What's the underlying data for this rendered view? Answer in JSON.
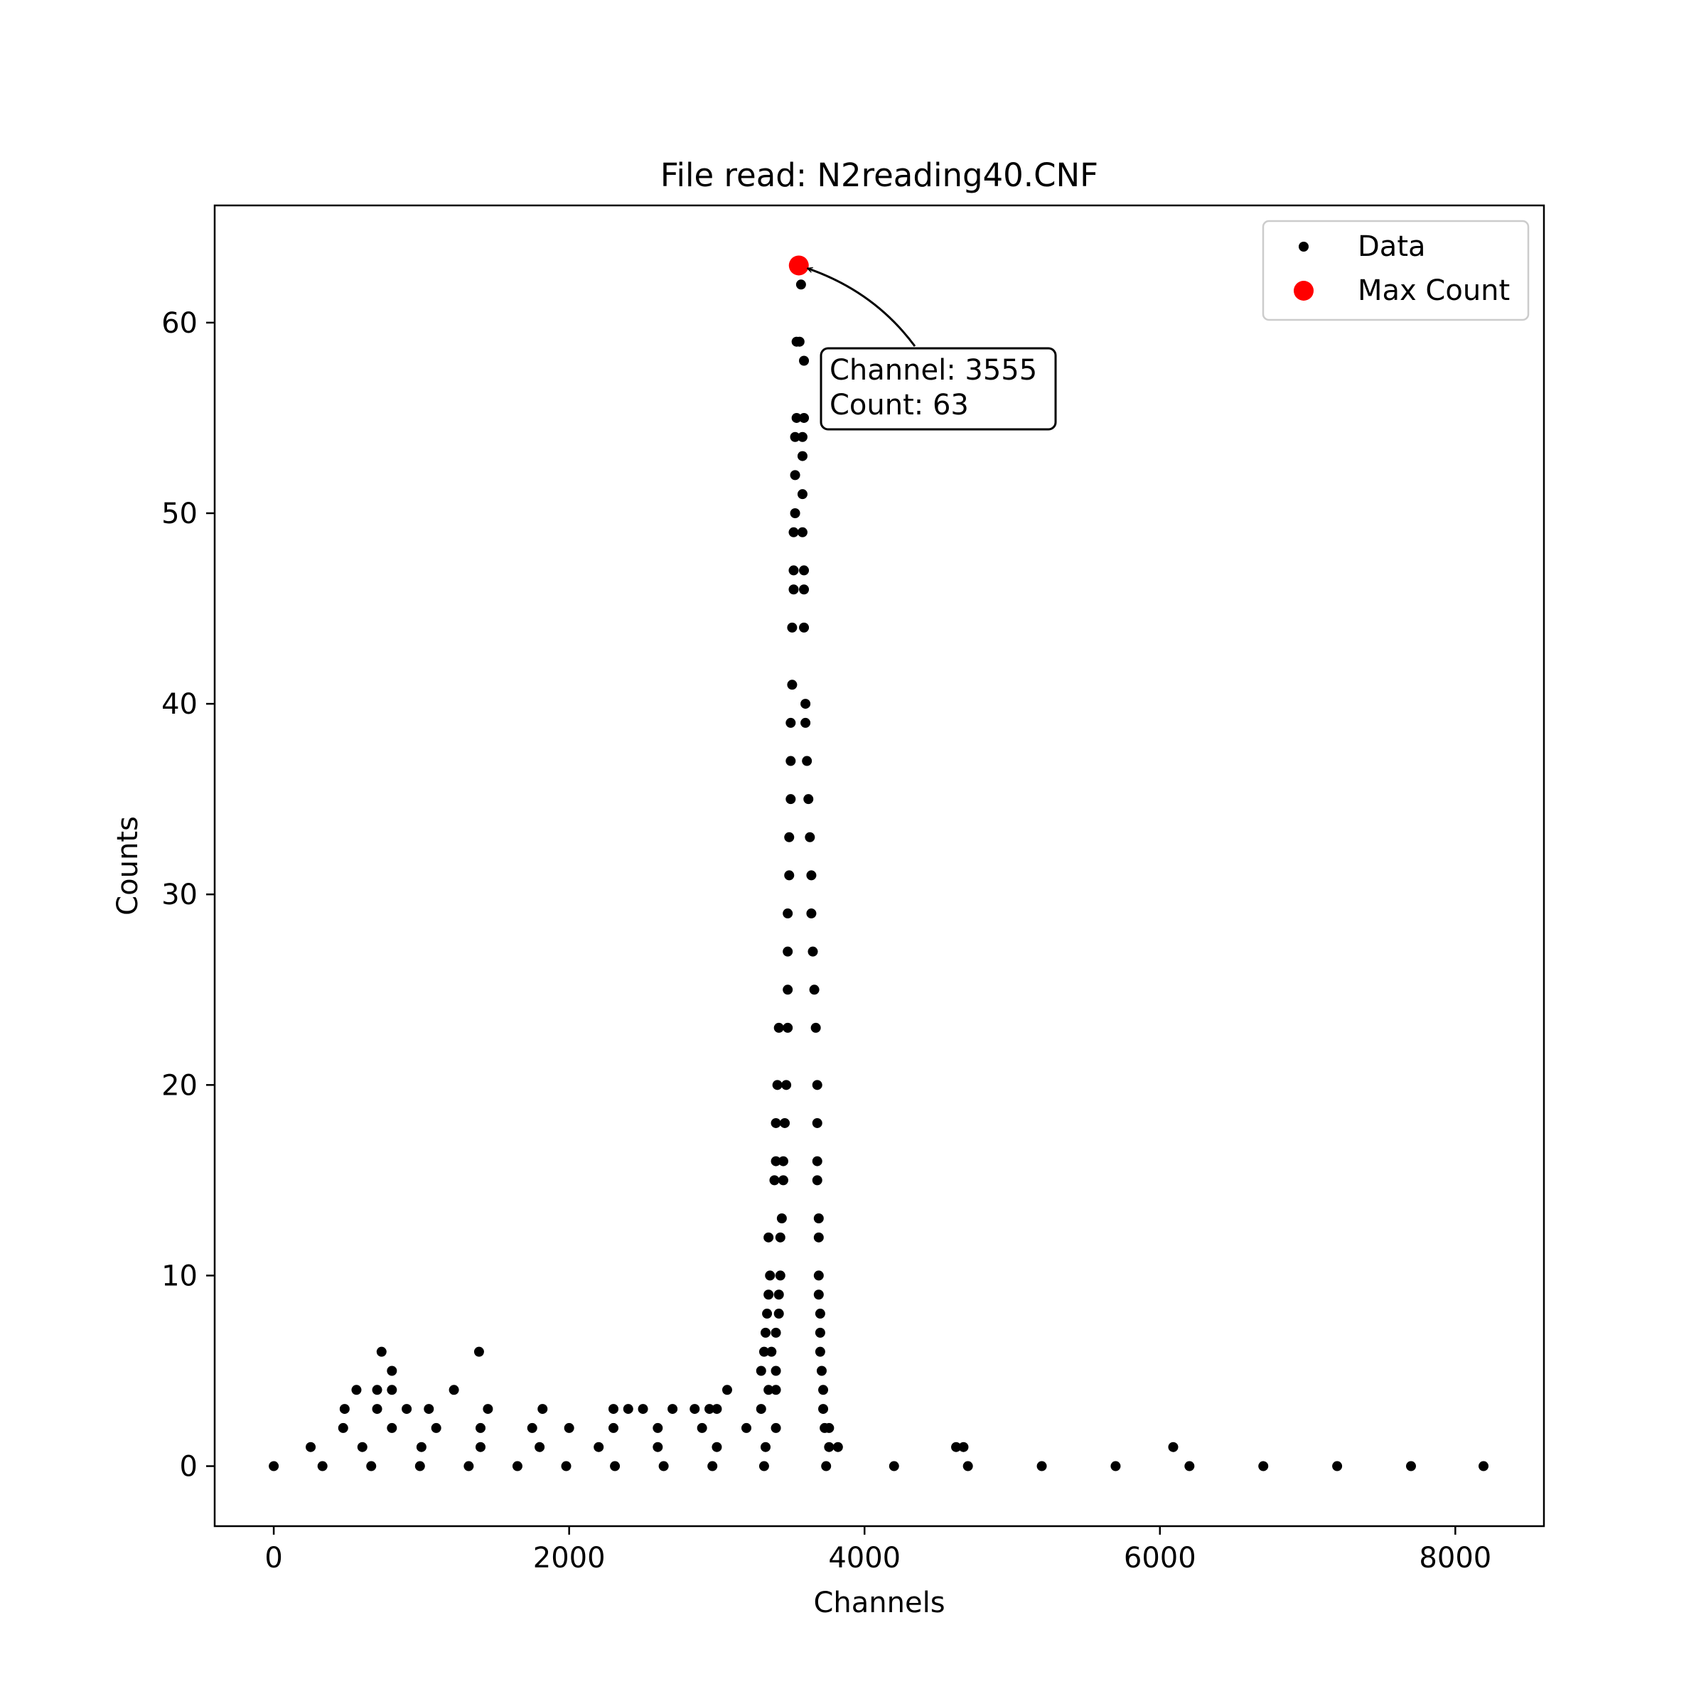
{
  "chart_data": {
    "type": "scatter",
    "title": "File read: N2reading40.CNF",
    "xlabel": "Channels",
    "ylabel": "Counts",
    "xlim": [
      -400,
      8600
    ],
    "ylim": [
      -3.15,
      66.15
    ],
    "xticks": [
      0,
      2000,
      4000,
      6000,
      8000
    ],
    "yticks": [
      0,
      10,
      20,
      30,
      40,
      50,
      60
    ],
    "grid": false,
    "legend_position": "top-right",
    "series": [
      {
        "name": "Data",
        "color": "#000000",
        "marker": "small-dot",
        "x_range": [
          0,
          8191
        ],
        "points": [
          [
            0,
            0
          ],
          [
            330,
            0
          ],
          [
            660,
            0
          ],
          [
            990,
            0
          ],
          [
            1320,
            0
          ],
          [
            1650,
            0
          ],
          [
            1980,
            0
          ],
          [
            2310,
            0
          ],
          [
            2640,
            0
          ],
          [
            2970,
            0
          ],
          [
            3320,
            0
          ],
          [
            3740,
            0
          ],
          [
            4200,
            0
          ],
          [
            4700,
            0
          ],
          [
            5200,
            0
          ],
          [
            5700,
            0
          ],
          [
            6200,
            0
          ],
          [
            6700,
            0
          ],
          [
            7200,
            0
          ],
          [
            7700,
            0
          ],
          [
            8191,
            0
          ],
          [
            250,
            1
          ],
          [
            600,
            1
          ],
          [
            1000,
            1
          ],
          [
            1400,
            1
          ],
          [
            1800,
            1
          ],
          [
            2200,
            1
          ],
          [
            2600,
            1
          ],
          [
            3000,
            1
          ],
          [
            3330,
            1
          ],
          [
            3760,
            1
          ],
          [
            3820,
            1
          ],
          [
            4620,
            1
          ],
          [
            4670,
            1
          ],
          [
            6090,
            1
          ],
          [
            470,
            2
          ],
          [
            800,
            2
          ],
          [
            1100,
            2
          ],
          [
            1400,
            2
          ],
          [
            1750,
            2
          ],
          [
            2000,
            2
          ],
          [
            2300,
            2
          ],
          [
            2600,
            2
          ],
          [
            2900,
            2
          ],
          [
            3200,
            2
          ],
          [
            3400,
            2
          ],
          [
            3730,
            2
          ],
          [
            3760,
            2
          ],
          [
            480,
            3
          ],
          [
            700,
            3
          ],
          [
            900,
            3
          ],
          [
            1050,
            3
          ],
          [
            1450,
            3
          ],
          [
            1820,
            3
          ],
          [
            2300,
            3
          ],
          [
            2400,
            3
          ],
          [
            2500,
            3
          ],
          [
            2700,
            3
          ],
          [
            2850,
            3
          ],
          [
            2950,
            3
          ],
          [
            3000,
            3
          ],
          [
            3300,
            3
          ],
          [
            3720,
            3
          ],
          [
            560,
            4
          ],
          [
            700,
            4
          ],
          [
            800,
            4
          ],
          [
            1220,
            4
          ],
          [
            3070,
            4
          ],
          [
            3350,
            4
          ],
          [
            3400,
            4
          ],
          [
            3720,
            4
          ],
          [
            800,
            5
          ],
          [
            3300,
            5
          ],
          [
            3400,
            5
          ],
          [
            3710,
            5
          ],
          [
            730,
            6
          ],
          [
            1390,
            6
          ],
          [
            3320,
            6
          ],
          [
            3370,
            6
          ],
          [
            3700,
            6
          ],
          [
            3330,
            7
          ],
          [
            3400,
            7
          ],
          [
            3700,
            7
          ],
          [
            3340,
            8
          ],
          [
            3420,
            8
          ],
          [
            3700,
            8
          ],
          [
            3350,
            9
          ],
          [
            3420,
            9
          ],
          [
            3690,
            9
          ],
          [
            3360,
            10
          ],
          [
            3430,
            10
          ],
          [
            3690,
            10
          ],
          [
            3350,
            12
          ],
          [
            3430,
            12
          ],
          [
            3690,
            12
          ],
          [
            3440,
            13
          ],
          [
            3690,
            13
          ],
          [
            3390,
            15
          ],
          [
            3450,
            15
          ],
          [
            3680,
            15
          ],
          [
            3400,
            16
          ],
          [
            3450,
            16
          ],
          [
            3680,
            16
          ],
          [
            3400,
            18
          ],
          [
            3460,
            18
          ],
          [
            3680,
            18
          ],
          [
            3410,
            20
          ],
          [
            3470,
            20
          ],
          [
            3680,
            20
          ],
          [
            3420,
            23
          ],
          [
            3480,
            23
          ],
          [
            3670,
            23
          ],
          [
            3480,
            25
          ],
          [
            3660,
            25
          ],
          [
            3480,
            27
          ],
          [
            3650,
            27
          ],
          [
            3480,
            29
          ],
          [
            3640,
            29
          ],
          [
            3490,
            31
          ],
          [
            3640,
            31
          ],
          [
            3490,
            33
          ],
          [
            3630,
            33
          ],
          [
            3500,
            35
          ],
          [
            3620,
            35
          ],
          [
            3500,
            37
          ],
          [
            3610,
            37
          ],
          [
            3500,
            39
          ],
          [
            3600,
            39
          ],
          [
            3510,
            41
          ],
          [
            3600,
            40
          ],
          [
            3510,
            44
          ],
          [
            3590,
            44
          ],
          [
            3520,
            46
          ],
          [
            3590,
            46
          ],
          [
            3520,
            47
          ],
          [
            3590,
            47
          ],
          [
            3520,
            49
          ],
          [
            3580,
            49
          ],
          [
            3530,
            50
          ],
          [
            3580,
            51
          ],
          [
            3530,
            52
          ],
          [
            3580,
            53
          ],
          [
            3530,
            54
          ],
          [
            3580,
            54
          ],
          [
            3540,
            55
          ],
          [
            3590,
            55
          ],
          [
            3540,
            59
          ],
          [
            3560,
            59
          ],
          [
            3590,
            58
          ],
          [
            3570,
            62
          ]
        ]
      },
      {
        "name": "Max Count",
        "color": "#ff0000",
        "marker": "large-dot",
        "points": [
          [
            3555,
            63
          ]
        ]
      }
    ],
    "annotation": {
      "lines": [
        "Channel: 3555",
        "Count: 63"
      ],
      "target": [
        3555,
        63
      ],
      "text_anchor": [
        4210,
        56
      ]
    }
  }
}
